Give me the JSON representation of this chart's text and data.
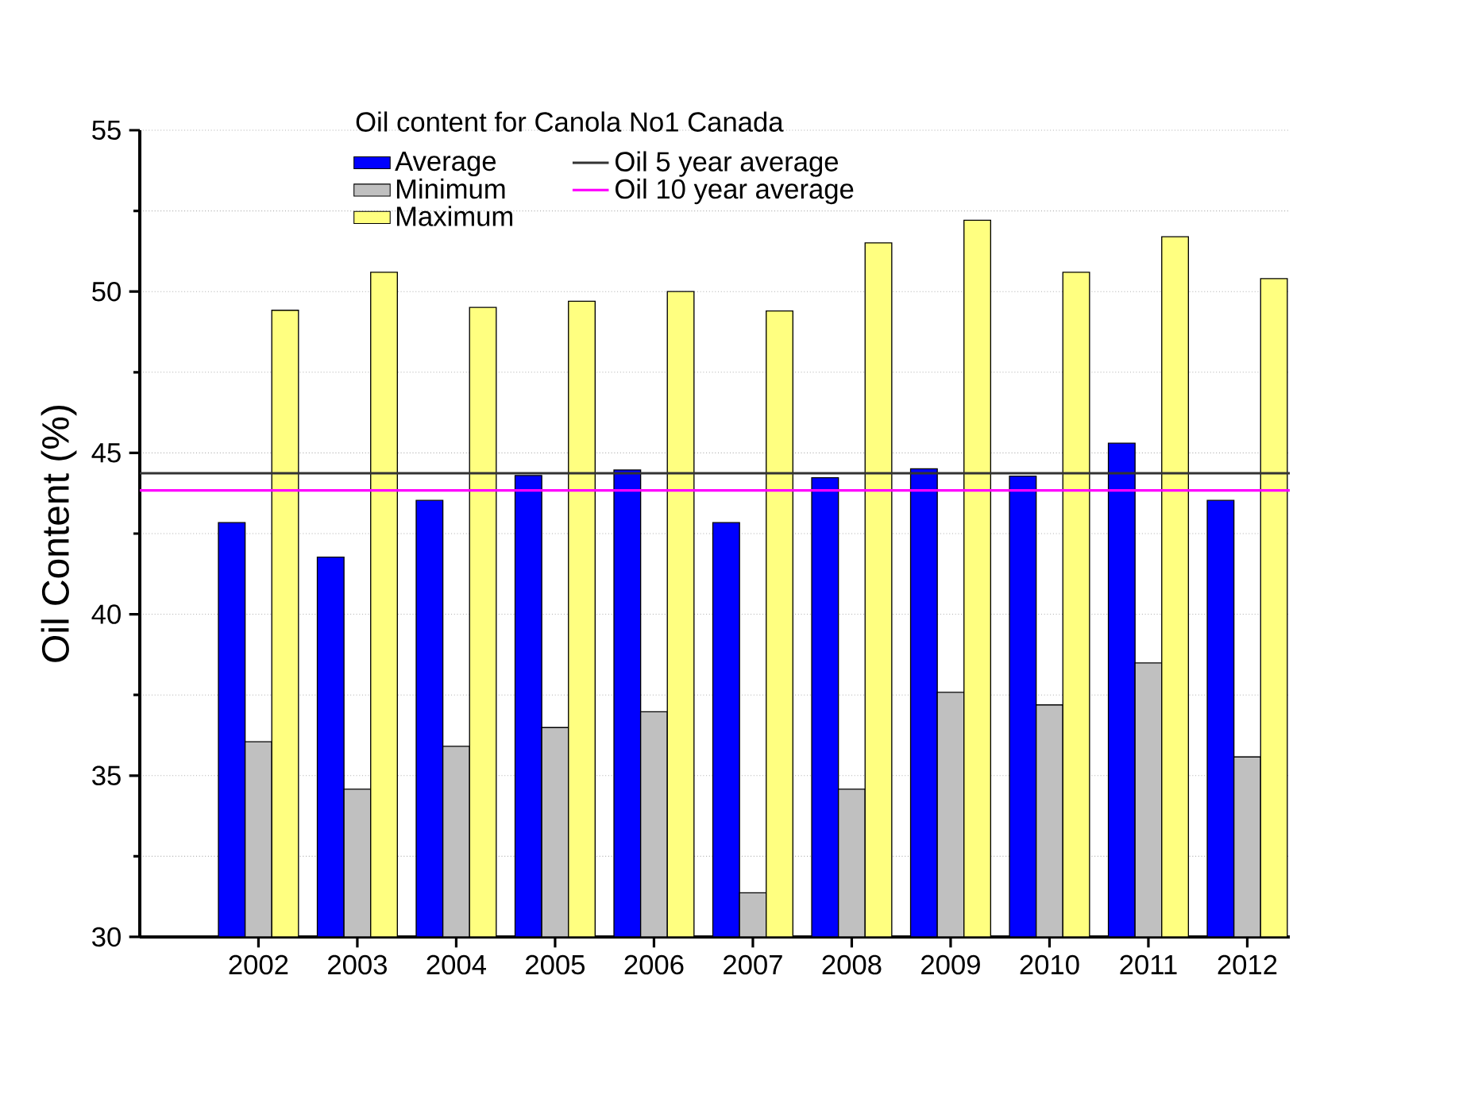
{
  "chart_data": {
    "type": "bar",
    "ylabel": "Oil Content (%)",
    "legend_title": "Oil content for Canola No1 Canada",
    "categories": [
      "2002",
      "2003",
      "2004",
      "2005",
      "2006",
      "2007",
      "2008",
      "2009",
      "2010",
      "2011",
      "2012"
    ],
    "series": [
      {
        "name": "Average",
        "color": "#0000ff",
        "values": [
          42.84,
          41.77,
          43.53,
          44.3,
          44.47,
          42.84,
          44.23,
          44.51,
          44.28,
          45.3,
          43.53
        ]
      },
      {
        "name": "Minimum",
        "color": "#c0c0c0",
        "values": [
          36.05,
          34.58,
          35.91,
          36.49,
          36.98,
          31.37,
          34.58,
          37.58,
          37.19,
          38.49,
          35.58
        ]
      },
      {
        "name": "Maximum",
        "color": "#ffff80",
        "values": [
          49.42,
          50.6,
          49.51,
          49.7,
          50.0,
          49.4,
          51.51,
          52.21,
          50.6,
          51.7,
          50.4
        ]
      }
    ],
    "ref_lines": [
      {
        "axis": "y",
        "value": 44.37,
        "label": "Oil 5 year average",
        "color": "#333333"
      },
      {
        "axis": "y",
        "value": 43.84,
        "label": "Oil 10 year average",
        "color": "#ff00ff"
      }
    ],
    "ylim": [
      30,
      55
    ],
    "yticks": [
      30,
      35,
      40,
      45,
      50,
      55
    ],
    "grid": "y",
    "legend": "top"
  }
}
